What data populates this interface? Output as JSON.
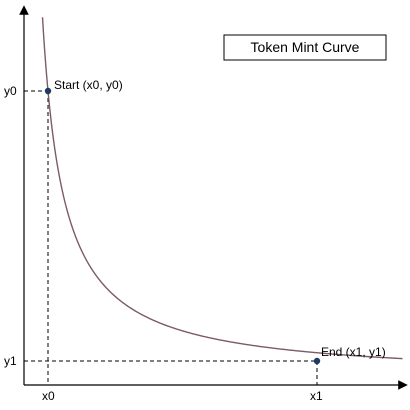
{
  "title": "Token Mint Curve",
  "axes": {
    "y_ticks": {
      "y0": "y0",
      "y1": "y1"
    },
    "x_ticks": {
      "x0": "x0",
      "x1": "x1"
    }
  },
  "points": {
    "start": {
      "label": "Start (x0, y0)"
    },
    "end": {
      "label": "End (x1, y1)"
    }
  },
  "colors": {
    "curve": "#7b5c64",
    "point": "#1f3a5f",
    "axis": "#000000"
  },
  "curve": {
    "type": "hyperbola",
    "shape": "y = k / x"
  }
}
